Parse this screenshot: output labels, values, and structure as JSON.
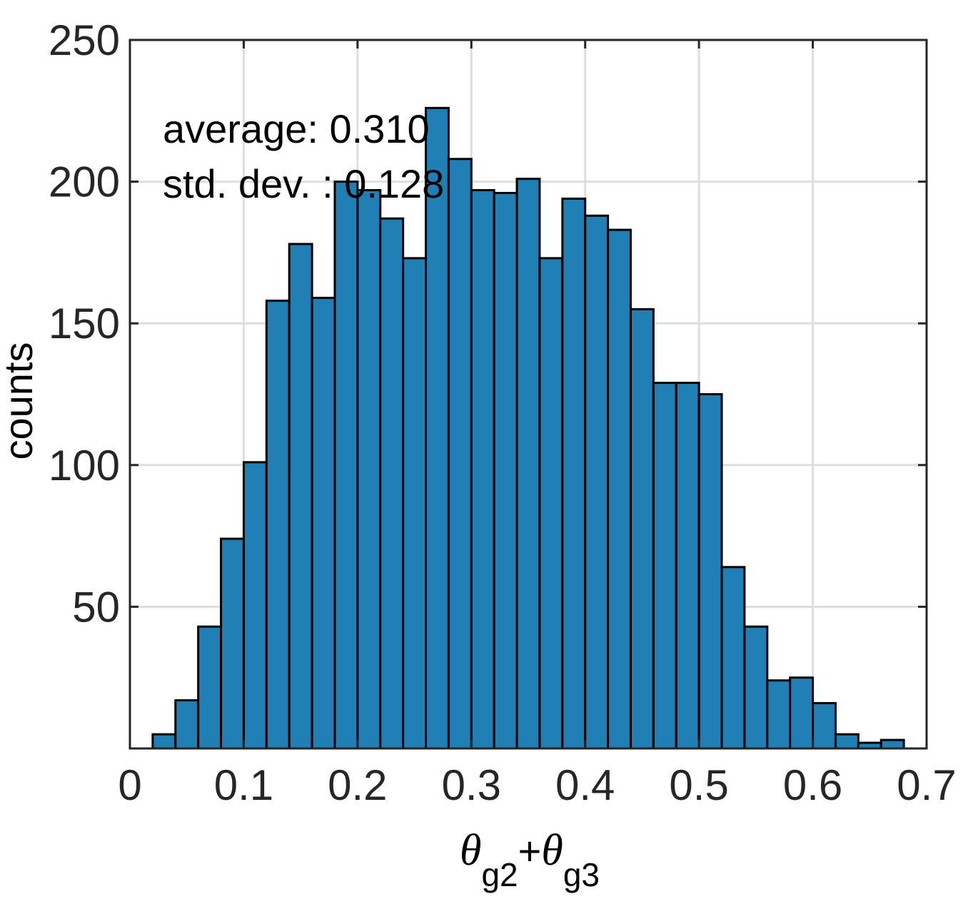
{
  "chart_data": {
    "type": "bar",
    "subtype": "histogram",
    "bin_edges_start": 0.02,
    "bin_width": 0.02,
    "values": [
      5,
      17,
      43,
      74,
      101,
      158,
      178,
      159,
      200,
      197,
      187,
      173,
      226,
      208,
      197,
      196,
      201,
      173,
      194,
      188,
      183,
      155,
      129,
      129,
      125,
      64,
      43,
      24,
      25,
      16,
      5,
      2,
      3
    ],
    "xlim": [
      0,
      0.7
    ],
    "ylim": [
      0,
      250
    ],
    "xticks": [
      "0",
      "0.1",
      "0.2",
      "0.3",
      "0.4",
      "0.5",
      "0.6",
      "0.7"
    ],
    "yticks": [
      "50",
      "100",
      "150",
      "200",
      "250"
    ],
    "xlabel": {
      "theta": "θ",
      "sub1": "g2",
      "plus": "+",
      "sub2": "g3"
    },
    "ylabel": "counts",
    "annotations": [
      "average: 0.310",
      "std. dev. : 0.128"
    ],
    "grid": true,
    "bar_color": "#1f7fb4",
    "edge_color": "#000000"
  }
}
